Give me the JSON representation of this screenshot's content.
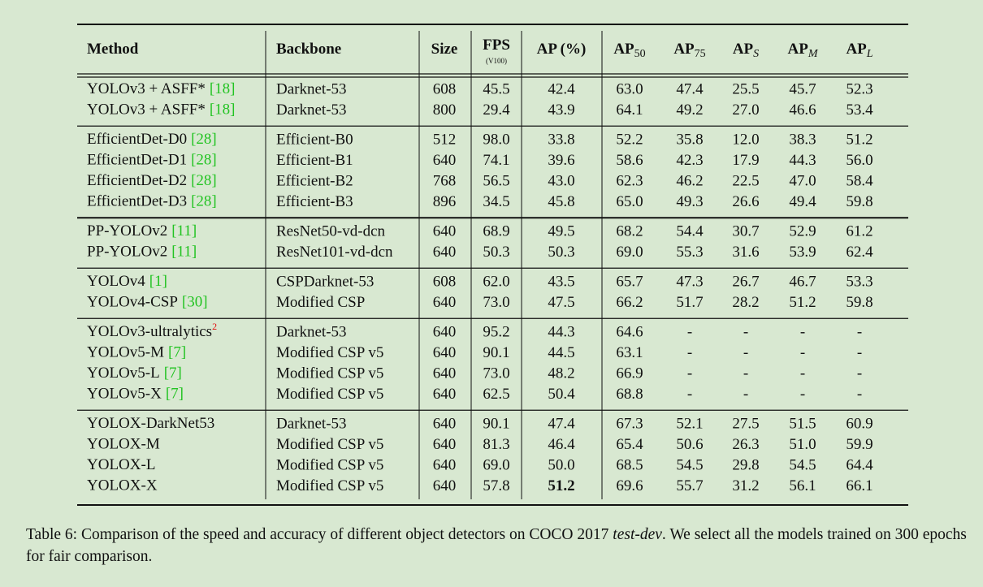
{
  "table": {
    "header": [
      {
        "text": "Method"
      },
      {
        "text": "Backbone"
      },
      {
        "text": "Size"
      },
      {
        "text": "FPS",
        "below": "(V100)"
      },
      {
        "text": "AP (%)"
      },
      {
        "text": "AP",
        "sub": "50"
      },
      {
        "text": "AP",
        "sub": "75"
      },
      {
        "text": "AP",
        "sub": "S",
        "italic_sub": true
      },
      {
        "text": "AP",
        "sub": "M",
        "italic_sub": true
      },
      {
        "text": "AP",
        "sub": "L",
        "italic_sub": true
      }
    ],
    "groups": [
      [
        {
          "method": "YOLOv3 + ASFF*",
          "ref": "[18]",
          "backbone": "Darknet-53",
          "cells": [
            "608",
            "45.5",
            "42.4",
            "63.0",
            "47.4",
            "25.5",
            "45.7",
            "52.3"
          ]
        },
        {
          "method": "YOLOv3 + ASFF*",
          "ref": "[18]",
          "backbone": "Darknet-53",
          "cells": [
            "800",
            "29.4",
            "43.9",
            "64.1",
            "49.2",
            "27.0",
            "46.6",
            "53.4"
          ]
        }
      ],
      [
        {
          "method": "EfficientDet-D0",
          "ref": "[28]",
          "backbone": "Efficient-B0",
          "cells": [
            "512",
            "98.0",
            "33.8",
            "52.2",
            "35.8",
            "12.0",
            "38.3",
            "51.2"
          ]
        },
        {
          "method": "EfficientDet-D1",
          "ref": "[28]",
          "backbone": "Efficient-B1",
          "cells": [
            "640",
            "74.1",
            "39.6",
            "58.6",
            "42.3",
            "17.9",
            "44.3",
            "56.0"
          ]
        },
        {
          "method": "EfficientDet-D2",
          "ref": "[28]",
          "backbone": "Efficient-B2",
          "cells": [
            "768",
            "56.5",
            "43.0",
            "62.3",
            "46.2",
            "22.5",
            "47.0",
            "58.4"
          ]
        },
        {
          "method": "EfficientDet-D3",
          "ref": "[28]",
          "backbone": "Efficient-B3",
          "cells": [
            "896",
            "34.5",
            "45.8",
            "65.0",
            "49.3",
            "26.6",
            "49.4",
            "59.8"
          ]
        }
      ],
      [
        {
          "method": "PP-YOLOv2",
          "ref": "[11]",
          "backbone": "ResNet50-vd-dcn",
          "cells": [
            "640",
            "68.9",
            "49.5",
            "68.2",
            "54.4",
            "30.7",
            "52.9",
            "61.2"
          ]
        },
        {
          "method": "PP-YOLOv2",
          "ref": "[11]",
          "backbone": "ResNet101-vd-dcn",
          "cells": [
            "640",
            "50.3",
            "50.3",
            "69.0",
            "55.3",
            "31.6",
            "53.9",
            "62.4"
          ]
        }
      ],
      [
        {
          "method": "YOLOv4",
          "ref": "[1]",
          "backbone": "CSPDarknet-53",
          "cells": [
            "608",
            "62.0",
            "43.5",
            "65.7",
            "47.3",
            "26.7",
            "46.7",
            "53.3"
          ]
        },
        {
          "method": "YOLOv4-CSP",
          "ref": "[30]",
          "backbone": "Modified CSP",
          "cells": [
            "640",
            "73.0",
            "47.5",
            "66.2",
            "51.7",
            "28.2",
            "51.2",
            "59.8"
          ]
        }
      ],
      [
        {
          "method": "YOLOv3-ultralytics",
          "note": "2",
          "backbone": "Darknet-53",
          "cells": [
            "640",
            "95.2",
            "44.3",
            "64.6",
            "-",
            "-",
            "-",
            "-"
          ]
        },
        {
          "method": "YOLOv5-M",
          "ref": "[7]",
          "backbone": "Modified CSP v5",
          "cells": [
            "640",
            "90.1",
            "44.5",
            "63.1",
            "-",
            "-",
            "-",
            "-"
          ]
        },
        {
          "method": "YOLOv5-L",
          "ref": "[7]",
          "backbone": "Modified CSP v5",
          "cells": [
            "640",
            "73.0",
            "48.2",
            "66.9",
            "-",
            "-",
            "-",
            "-"
          ]
        },
        {
          "method": "YOLOv5-X",
          "ref": "[7]",
          "backbone": "Modified CSP v5",
          "cells": [
            "640",
            "62.5",
            "50.4",
            "68.8",
            "-",
            "-",
            "-",
            "-"
          ]
        }
      ],
      [
        {
          "method": "YOLOX-DarkNet53",
          "backbone": "Darknet-53",
          "cells": [
            "640",
            "90.1",
            "47.4",
            "67.3",
            "52.1",
            "27.5",
            "51.5",
            "60.9"
          ]
        },
        {
          "method": "YOLOX-M",
          "backbone": "Modified CSP v5",
          "cells": [
            "640",
            "81.3",
            "46.4",
            "65.4",
            "50.6",
            "26.3",
            "51.0",
            "59.9"
          ]
        },
        {
          "method": "YOLOX-L",
          "backbone": "Modified CSP v5",
          "cells": [
            "640",
            "69.0",
            "50.0",
            "68.5",
            "54.5",
            "29.8",
            "54.5",
            "64.4"
          ]
        },
        {
          "method": "YOLOX-X",
          "backbone": "Modified CSP v5",
          "cells": [
            "640",
            "57.8",
            "51.2",
            "69.6",
            "55.7",
            "31.2",
            "56.1",
            "66.1"
          ],
          "bold_cells": [
            2
          ]
        }
      ]
    ]
  },
  "caption": {
    "label": "Table 6:",
    "text": "Comparison of the speed and accuracy of different object detectors on COCO 2017",
    "italic": "test-dev",
    "rest": ". We select all the models trained on 300 epochs for fair comparison."
  }
}
